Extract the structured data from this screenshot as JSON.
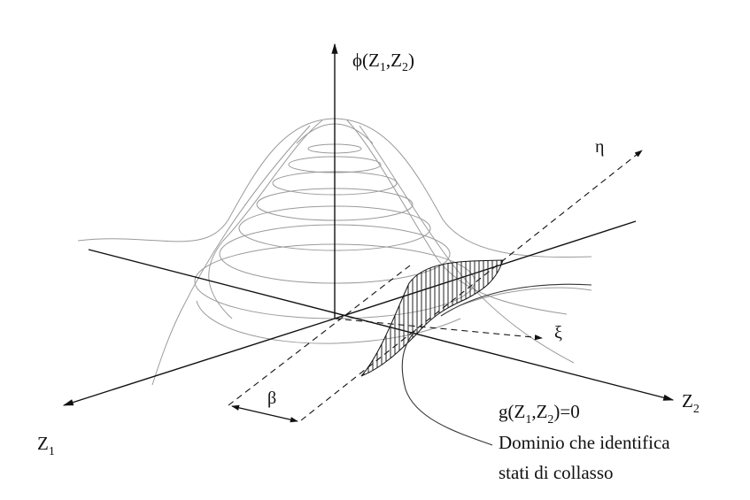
{
  "labels": {
    "phi_main": "ϕ(Z",
    "phi_sub1": "1",
    "phi_mid": ",Z",
    "phi_sub2": "2",
    "phi_end": ")",
    "eta": "η",
    "xi": "ξ",
    "beta": "β",
    "z1_main": "Z",
    "z1_sub": "1",
    "z2_main": "Z",
    "z2_sub": "2",
    "g_main": "g(Z",
    "g_sub1": "1",
    "g_mid": ",Z",
    "g_sub2": "2",
    "g_end": ")=0",
    "domain_line1": "Dominio che identifica",
    "domain_line2": "stati di collasso"
  },
  "colors": {
    "axis": "#111111",
    "grid": "#9a9a9a",
    "hatch": "#222222"
  }
}
